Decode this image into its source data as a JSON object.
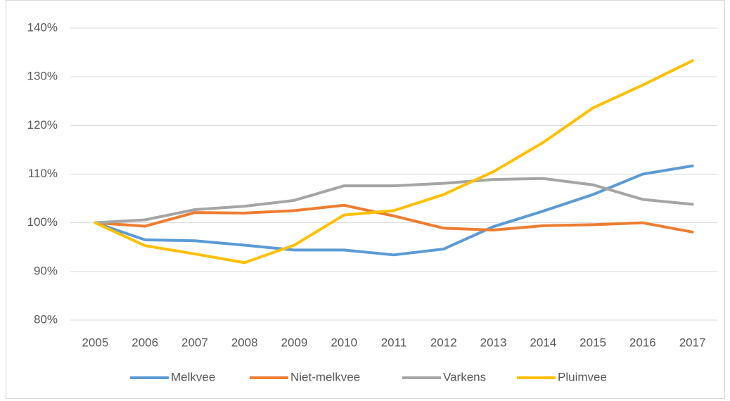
{
  "chart_data": {
    "type": "line",
    "categories": [
      "2005",
      "2006",
      "2007",
      "2008",
      "2009",
      "2010",
      "2011",
      "2012",
      "2013",
      "2014",
      "2015",
      "2016",
      "2017"
    ],
    "series": [
      {
        "name": "Melkvee",
        "color": "#5b9bd5",
        "values": [
          100,
          96.5,
          96.3,
          95.4,
          94.4,
          94.4,
          93.4,
          94.6,
          99.2,
          102.4,
          105.8,
          110,
          111.7
        ]
      },
      {
        "name": "Niet-melkvee",
        "color": "#ed7d31",
        "values": [
          100,
          99.3,
          102.1,
          102,
          102.5,
          103.6,
          101.4,
          98.9,
          98.5,
          99.4,
          99.6,
          100,
          98.1
        ]
      },
      {
        "name": "Varkens",
        "color": "#a5a5a5",
        "values": [
          100,
          100.6,
          102.7,
          103.4,
          104.6,
          107.6,
          107.6,
          108.1,
          108.9,
          109.1,
          107.8,
          104.8,
          103.8
        ]
      },
      {
        "name": "Pluimvee",
        "color": "#ffc000",
        "values": [
          100,
          95.3,
          93.6,
          91.8,
          95.4,
          101.6,
          102.5,
          105.8,
          110.5,
          116.5,
          123.6,
          128.3,
          133.3
        ]
      }
    ],
    "ylim": [
      80,
      140
    ],
    "yticks": [
      {
        "value": 80,
        "label": "80%"
      },
      {
        "value": 90,
        "label": "90%"
      },
      {
        "value": 100,
        "label": "100%"
      },
      {
        "value": 110,
        "label": "110%"
      },
      {
        "value": 120,
        "label": "120%"
      },
      {
        "value": 130,
        "label": "130%"
      },
      {
        "value": 140,
        "label": "140%"
      }
    ],
    "grid": true,
    "legend": "bottom"
  }
}
